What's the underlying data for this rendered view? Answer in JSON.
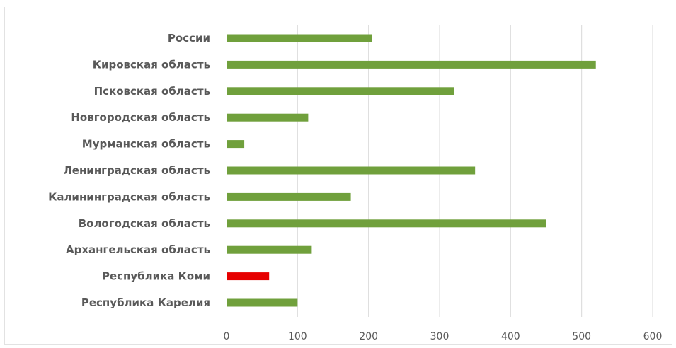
{
  "chart_data": {
    "type": "bar",
    "orientation": "horizontal",
    "categories": [
      "России",
      "Кировская область",
      "Псковская область",
      "Новгородская область",
      "Мурманская область",
      "Ленинградская область",
      "Калининградская область",
      "Вологодская область",
      "Архангельская область",
      "Республика Коми",
      "Республика Карелия"
    ],
    "values": [
      205,
      520,
      320,
      115,
      25,
      350,
      175,
      450,
      120,
      60,
      100
    ],
    "colors": [
      "#70a03c",
      "#70a03c",
      "#70a03c",
      "#70a03c",
      "#70a03c",
      "#70a03c",
      "#70a03c",
      "#70a03c",
      "#70a03c",
      "#e60000",
      "#70a03c"
    ],
    "xlim": [
      0,
      600
    ],
    "xticks": [
      "0",
      "100",
      "200",
      "300",
      "400",
      "500",
      "600"
    ],
    "grid": "vertical",
    "legend": "none",
    "title": "",
    "xlabel": "",
    "ylabel": ""
  }
}
